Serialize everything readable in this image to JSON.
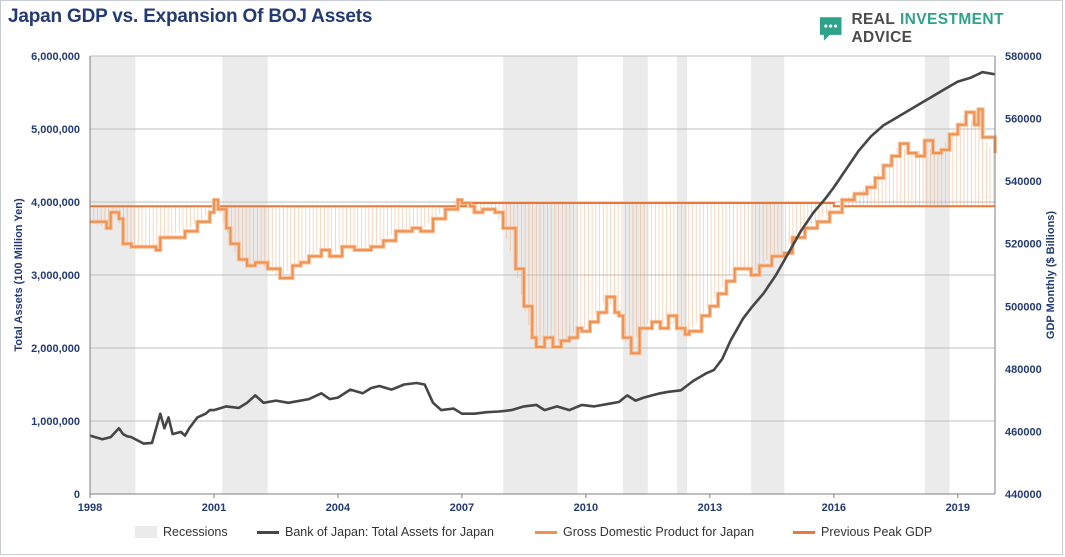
{
  "header": {
    "title": "Japan GDP vs. Expansion Of BOJ Assets",
    "brand_word1": "REAL",
    "brand_word2": "INVESTMENT",
    "brand_word3": "ADVICE",
    "brand_icon": "chat-bubble-icon"
  },
  "colors": {
    "boj": "#464646",
    "gdp": "#f0914f",
    "peak": "#e8773a",
    "recession": "#ebebeb",
    "axis_text": "#233a73",
    "grid": "#bfbfbf",
    "brand_green": "#2fa28a"
  },
  "legend": {
    "recessions": "Recessions",
    "boj": "Bank of Japan: Total Assets for Japan",
    "gdp": "Gross Domestic Product for Japan",
    "peak": "Previous Peak GDP"
  },
  "chart_data": {
    "type": "line",
    "title": "Japan GDP vs. Expansion Of BOJ Assets",
    "xlabel": "",
    "ylabel_left": "Total Assets (100 Million Yen)",
    "ylabel_right": "GDP Monthly ($ Billions)",
    "x_range": [
      1998,
      2019.9
    ],
    "ylim_left": [
      0,
      6000000
    ],
    "ylim_right": [
      440000,
      580000
    ],
    "x_ticks": [
      "1998",
      "2001",
      "2004",
      "2007",
      "2010",
      "2013",
      "2016",
      "2019"
    ],
    "y_left_ticks": [
      "0",
      "1,000,000",
      "2,000,000",
      "3,000,000",
      "4,000,000",
      "5,000,000",
      "6,000,000"
    ],
    "y_right_ticks": [
      "440000",
      "460000",
      "480000",
      "500000",
      "520000",
      "540000",
      "560000",
      "580000"
    ],
    "grid": "horizontal",
    "legend_position": "bottom",
    "recessions": [
      [
        1998.0,
        1999.1
      ],
      [
        2001.2,
        2002.3
      ],
      [
        2008.0,
        2009.8
      ],
      [
        2010.9,
        2011.5
      ],
      [
        2012.2,
        2012.45
      ],
      [
        2014.0,
        2014.8
      ],
      [
        2018.2,
        2018.8
      ]
    ],
    "series": [
      {
        "name": "Bank of Japan: Total Assets for Japan",
        "axis": "left",
        "x": [
          1998.0,
          1998.3,
          1998.5,
          1998.7,
          1998.8,
          1998.9,
          1999.0,
          1999.3,
          1999.5,
          1999.7,
          1999.8,
          1999.9,
          2000.0,
          2000.2,
          2000.3,
          2000.4,
          2000.6,
          2000.8,
          2000.9,
          2001.0,
          2001.3,
          2001.6,
          2001.8,
          2002.0,
          2002.2,
          2002.5,
          2002.8,
          2003.0,
          2003.3,
          2003.6,
          2003.8,
          2004.0,
          2004.3,
          2004.6,
          2004.8,
          2005.0,
          2005.3,
          2005.6,
          2005.9,
          2006.1,
          2006.3,
          2006.5,
          2006.8,
          2007.0,
          2007.3,
          2007.6,
          2007.9,
          2008.2,
          2008.5,
          2008.8,
          2009.0,
          2009.3,
          2009.6,
          2009.9,
          2010.2,
          2010.5,
          2010.8,
          2011.0,
          2011.2,
          2011.4,
          2011.6,
          2011.8,
          2012.0,
          2012.3,
          2012.6,
          2012.9,
          2013.1,
          2013.3,
          2013.5,
          2013.8,
          2014.0,
          2014.3,
          2014.6,
          2014.9,
          2015.2,
          2015.5,
          2015.8,
          2016.0,
          2016.3,
          2016.6,
          2016.9,
          2017.2,
          2017.5,
          2017.8,
          2018.1,
          2018.4,
          2018.7,
          2019.0,
          2019.3,
          2019.6,
          2019.9
        ],
        "values": [
          800000,
          750000,
          780000,
          900000,
          820000,
          790000,
          780000,
          690000,
          700000,
          1100000,
          900000,
          1050000,
          820000,
          850000,
          800000,
          900000,
          1050000,
          1100000,
          1150000,
          1150000,
          1200000,
          1180000,
          1250000,
          1350000,
          1250000,
          1280000,
          1250000,
          1270000,
          1300000,
          1380000,
          1300000,
          1320000,
          1430000,
          1380000,
          1450000,
          1480000,
          1430000,
          1500000,
          1520000,
          1500000,
          1250000,
          1150000,
          1170000,
          1100000,
          1100000,
          1120000,
          1130000,
          1150000,
          1200000,
          1220000,
          1150000,
          1200000,
          1150000,
          1220000,
          1200000,
          1230000,
          1260000,
          1350000,
          1280000,
          1320000,
          1350000,
          1380000,
          1400000,
          1420000,
          1550000,
          1650000,
          1700000,
          1850000,
          2100000,
          2400000,
          2550000,
          2750000,
          3000000,
          3300000,
          3600000,
          3850000,
          4050000,
          4200000,
          4450000,
          4700000,
          4900000,
          5050000,
          5150000,
          5250000,
          5350000,
          5450000,
          5550000,
          5650000,
          5700000,
          5780000,
          5750000
        ]
      },
      {
        "name": "Gross Domestic Product for Japan",
        "axis": "right",
        "x": [
          1998.0,
          1998.4,
          1998.5,
          1998.7,
          1998.8,
          1999.0,
          1999.6,
          1999.7,
          2000.3,
          2000.6,
          2000.9,
          2001.0,
          2001.1,
          2001.3,
          2001.4,
          2001.6,
          2001.8,
          2002.0,
          2002.3,
          2002.6,
          2002.9,
          2003.1,
          2003.3,
          2003.6,
          2003.8,
          2004.1,
          2004.4,
          2004.8,
          2005.1,
          2005.4,
          2005.8,
          2006.0,
          2006.3,
          2006.6,
          2006.9,
          2007.0,
          2007.2,
          2007.3,
          2007.5,
          2007.8,
          2008.0,
          2008.3,
          2008.5,
          2008.7,
          2008.8,
          2009.0,
          2009.2,
          2009.4,
          2009.6,
          2009.8,
          2009.9,
          2010.1,
          2010.3,
          2010.5,
          2010.7,
          2010.8,
          2010.9,
          2011.1,
          2011.3,
          2011.6,
          2011.8,
          2012.0,
          2012.2,
          2012.4,
          2012.5,
          2012.8,
          2013.0,
          2013.2,
          2013.4,
          2013.6,
          2013.8,
          2014.0,
          2014.2,
          2014.5,
          2014.8,
          2015.0,
          2015.3,
          2015.6,
          2015.9,
          2016.2,
          2016.5,
          2016.8,
          2017.0,
          2017.2,
          2017.4,
          2017.6,
          2017.8,
          2018.0,
          2018.2,
          2018.4,
          2018.6,
          2018.8,
          2019.0,
          2019.2,
          2019.4,
          2019.5,
          2019.6,
          2019.9
        ],
        "values": [
          527000,
          525000,
          530000,
          528000,
          520000,
          519000,
          518000,
          522000,
          524000,
          527000,
          530000,
          534000,
          531000,
          525000,
          520000,
          515000,
          513000,
          514000,
          512000,
          509000,
          513000,
          514000,
          516000,
          518000,
          516000,
          519000,
          518000,
          519000,
          521000,
          524000,
          525000,
          524000,
          528000,
          531000,
          534000,
          533000,
          532000,
          530000,
          531000,
          530000,
          525000,
          512000,
          500000,
          490000,
          487000,
          490000,
          487000,
          489000,
          490000,
          493000,
          492000,
          495000,
          498000,
          503000,
          498000,
          497000,
          490000,
          485000,
          493000,
          495000,
          493000,
          497000,
          493000,
          491000,
          492000,
          497000,
          500000,
          504000,
          508000,
          512000,
          512000,
          510000,
          513000,
          516000,
          517000,
          522000,
          525000,
          527000,
          530000,
          534000,
          536000,
          538000,
          541000,
          545000,
          548000,
          552000,
          549000,
          548000,
          553000,
          549000,
          550000,
          555000,
          558000,
          562000,
          558000,
          563000,
          554000,
          549000
        ]
      },
      {
        "name": "Previous Peak GDP",
        "axis": "right",
        "x": [
          1998.0,
          2007.0,
          2007.1,
          2015.9,
          2016.0,
          2019.9
        ],
        "values": [
          532000,
          532000,
          533000,
          533000,
          532000,
          532000
        ]
      }
    ]
  }
}
